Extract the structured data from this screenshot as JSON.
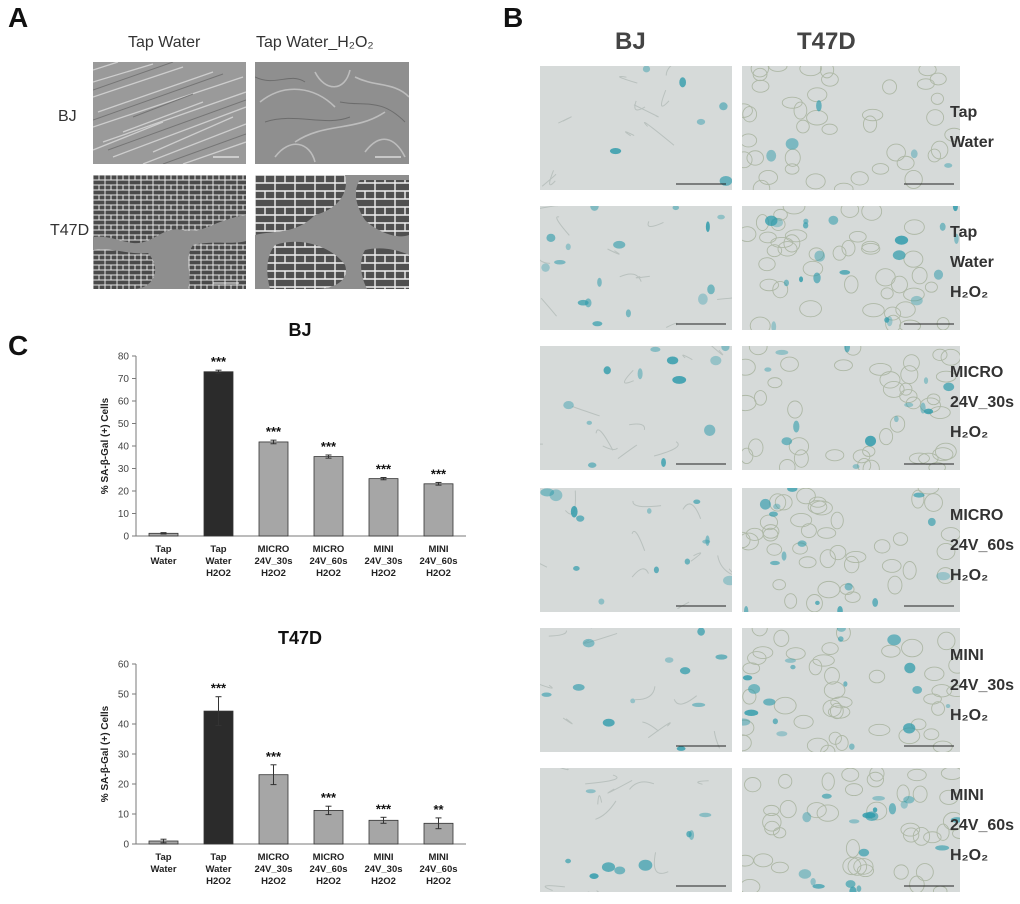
{
  "panel_a": {
    "letter": "A",
    "columns": [
      "Tap Water",
      "Tap Water_H₂O₂"
    ],
    "rows": [
      "BJ",
      "T47D"
    ]
  },
  "panel_b": {
    "letter": "B",
    "columns": [
      "BJ",
      "T47D"
    ],
    "conditions": [
      [
        "Tap",
        "Water"
      ],
      [
        "Tap",
        "Water",
        "H₂O₂"
      ],
      [
        "MICRO",
        "24V_30s",
        "H₂O₂"
      ],
      [
        "MICRO",
        "24V_60s",
        "H₂O₂"
      ],
      [
        "MINI",
        "24V_30s",
        "H₂O₂"
      ],
      [
        "MINI",
        "24V_60s",
        "H₂O₂"
      ]
    ]
  },
  "panel_c": {
    "letter": "C"
  },
  "colors": {
    "black_bar": "#2b2b2b",
    "gray_bar": "#a6a6a6",
    "stain_blue": "#2f9bab",
    "micro_bg": "#d6dad9",
    "phase_bg": "#8a8a8a"
  },
  "chart_data": [
    {
      "type": "bar",
      "title": "BJ",
      "ylabel": "% SA-β-Gal (+) Cells",
      "xlabel": "",
      "ylim": [
        0,
        80
      ],
      "yticks": [
        0,
        10,
        20,
        30,
        40,
        50,
        60,
        70,
        80
      ],
      "categories": [
        [
          "Tap",
          "Water"
        ],
        [
          "Tap",
          "Water",
          "H2O2"
        ],
        [
          "MICRO",
          "24V_30s",
          "H2O2"
        ],
        [
          "MICRO",
          "24V_60s",
          "H2O2"
        ],
        [
          "MINI",
          "24V_30s",
          "H2O2"
        ],
        [
          "MINI",
          "24V_60s",
          "H2O2"
        ]
      ],
      "values": [
        1.2,
        73,
        41.8,
        35.3,
        25.5,
        23.2
      ],
      "errors": [
        0.3,
        0.7,
        0.8,
        0.7,
        0.5,
        0.6
      ],
      "significance": [
        "",
        "***",
        "***",
        "***",
        "***",
        "***"
      ],
      "bar_colors": [
        "gray",
        "black",
        "gray",
        "gray",
        "gray",
        "gray"
      ]
    },
    {
      "type": "bar",
      "title": "T47D",
      "ylabel": "% SA-β-Gal (+) Cells",
      "xlabel": "",
      "ylim": [
        0,
        60
      ],
      "yticks": [
        0,
        10,
        20,
        30,
        40,
        50,
        60
      ],
      "categories": [
        [
          "Tap",
          "Water"
        ],
        [
          "Tap",
          "Water",
          "H2O2"
        ],
        [
          "MICRO",
          "24V_30s",
          "H2O2"
        ],
        [
          "MICRO",
          "24V_60s",
          "H2O2"
        ],
        [
          "MINI",
          "24V_30s",
          "H2O2"
        ],
        [
          "MINI",
          "24V_60s",
          "H2O2"
        ]
      ],
      "values": [
        1.0,
        44.3,
        23.1,
        11.2,
        7.9,
        6.9
      ],
      "errors": [
        0.6,
        4.8,
        3.3,
        1.4,
        1.0,
        1.8
      ],
      "significance": [
        "",
        "***",
        "***",
        "***",
        "***",
        "**"
      ],
      "bar_colors": [
        "gray",
        "black",
        "gray",
        "gray",
        "gray",
        "gray"
      ]
    }
  ]
}
